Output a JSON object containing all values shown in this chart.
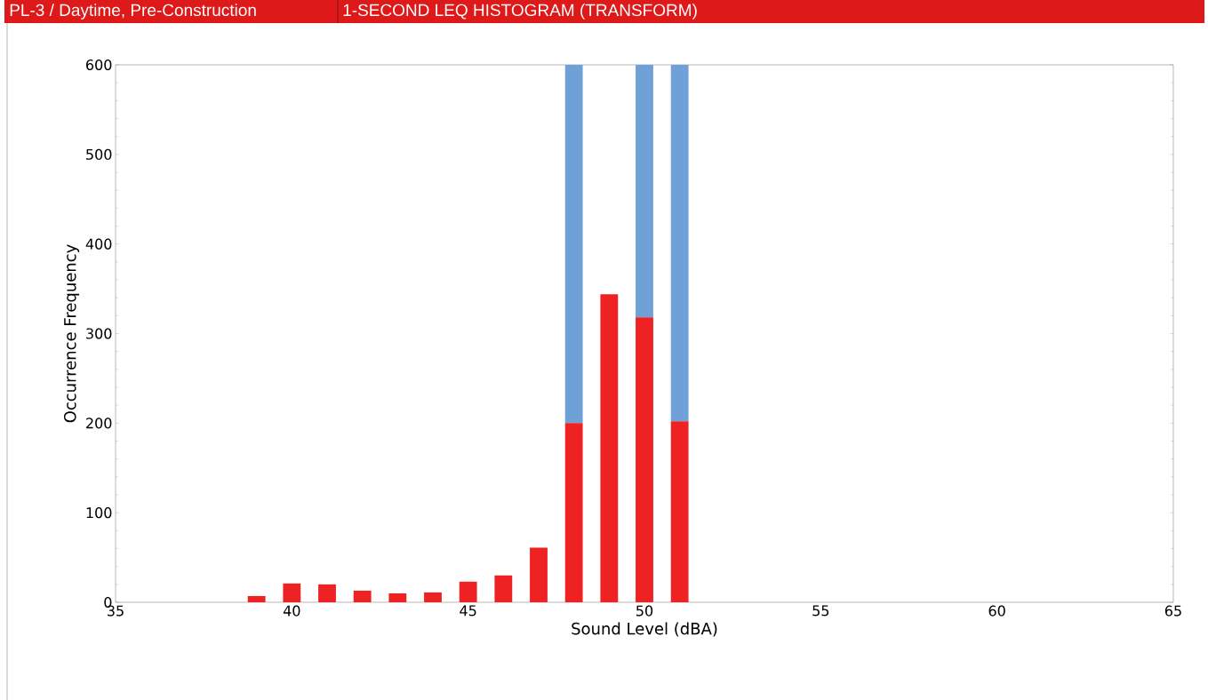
{
  "chart_data": {
    "type": "bar",
    "title": "1-SECOND LEQ HISTOGRAM (TRANSFORM)",
    "subtitle": "PL-3 / Daytime, Pre-Construction",
    "xlabel": "Sound Level (dBA)",
    "ylabel": "Occurrence Frequency",
    "stacked": true,
    "x": [
      39,
      40,
      41,
      42,
      43,
      44,
      45,
      46,
      47,
      48,
      49,
      50,
      51
    ],
    "series": [
      {
        "color": "#ee2222",
        "values": [
          7,
          21,
          20,
          13,
          10,
          11,
          23,
          30,
          61,
          200,
          344,
          318,
          202
        ]
      },
      {
        "color": "#6fa1d8",
        "values": [
          null,
          null,
          null,
          null,
          null,
          null,
          null,
          null,
          null,
          400,
          null,
          282,
          398
        ]
      }
    ],
    "xlim": [
      35,
      65
    ],
    "xticks": [
      35,
      40,
      45,
      50,
      55,
      60,
      65
    ],
    "ylim": [
      0,
      600
    ],
    "yticks": [
      0,
      100,
      200,
      300,
      400,
      500,
      600
    ]
  }
}
